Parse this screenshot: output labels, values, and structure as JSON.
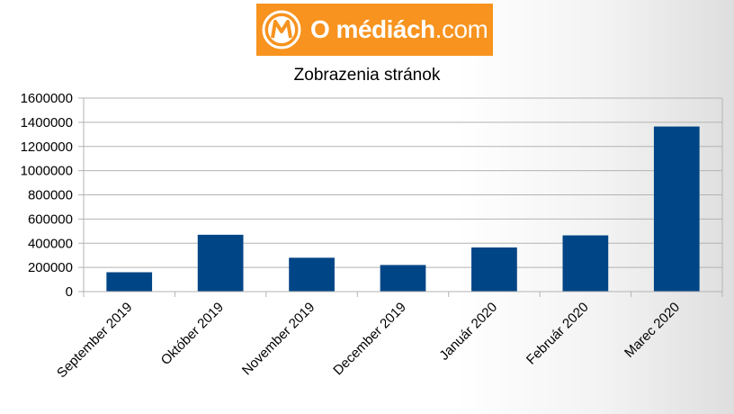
{
  "logo": {
    "brand_name": "O médiách",
    "brand_tld": ".com"
  },
  "colors": {
    "bar": "#004586",
    "logo_bg": "#f7931e",
    "axis": "#b3b3b3",
    "grid": "#b3b3b3"
  },
  "chart_data": {
    "type": "bar",
    "title": "Zobrazenia stránok",
    "xlabel": "",
    "ylabel": "",
    "categories": [
      "September 2019",
      "Október 2019",
      "November 2019",
      "December 2019",
      "Január 2020",
      "Február 2020",
      "Marec 2020"
    ],
    "values": [
      160000,
      470000,
      280000,
      220000,
      365000,
      465000,
      1365000
    ],
    "ylim": [
      0,
      1600000
    ],
    "yticks": [
      "0",
      "200000",
      "400000",
      "600000",
      "800000",
      "1000000",
      "1200000",
      "1400000",
      "1600000"
    ],
    "grid": true,
    "legend": "none"
  }
}
